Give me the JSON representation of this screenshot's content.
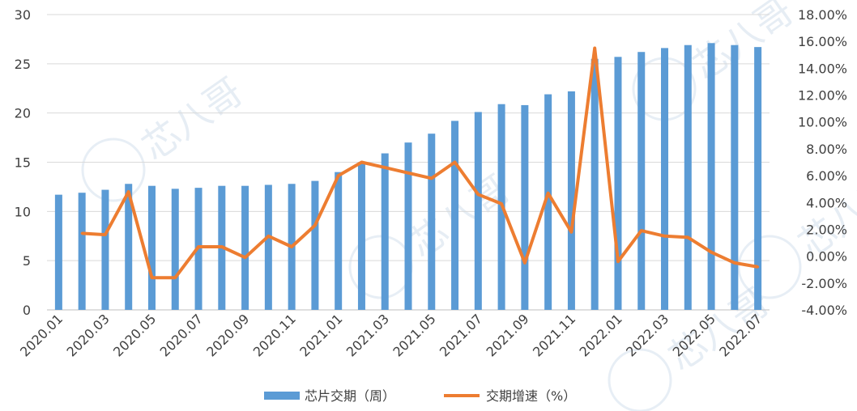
{
  "chart_data": {
    "type": "bar+line",
    "categories": [
      "2020.01",
      "2020.02",
      "2020.03",
      "2020.04",
      "2020.05",
      "2020.06",
      "2020.07",
      "2020.08",
      "2020.09",
      "2020.10",
      "2020.11",
      "2020.12",
      "2021.01",
      "2021.02",
      "2021.03",
      "2021.04",
      "2021.05",
      "2021.06",
      "2021.07",
      "2021.08",
      "2021.09",
      "2021.10",
      "2021.11",
      "2021.12",
      "2022.01",
      "2022.02",
      "2022.03",
      "2022.04",
      "2022.05",
      "2022.06",
      "2022.07"
    ],
    "x_tick_labels": [
      "2020.01",
      "2020.03",
      "2020.05",
      "2020.07",
      "2020.09",
      "2020.11",
      "2021.01",
      "2021.03",
      "2021.05",
      "2021.07",
      "2021.09",
      "2021.11",
      "2022.01",
      "2022.03",
      "2022.05",
      "2022.07"
    ],
    "series": [
      {
        "name": "芯片交期（周）",
        "type": "bar",
        "axis": "left",
        "color": "#5b9bd5",
        "values": [
          11.7,
          11.9,
          12.2,
          12.8,
          12.6,
          12.3,
          12.4,
          12.6,
          12.6,
          12.7,
          12.8,
          13.1,
          14.0,
          15.0,
          15.9,
          17.0,
          17.9,
          19.2,
          20.1,
          20.9,
          20.8,
          21.9,
          22.2,
          25.5,
          25.7,
          26.2,
          26.6,
          26.9,
          27.1,
          26.9,
          26.7
        ]
      },
      {
        "name": "交期增速（%）",
        "type": "line",
        "axis": "right",
        "color": "#ed7d31",
        "values": [
          null,
          1.7,
          1.6,
          4.8,
          -1.6,
          -1.6,
          0.7,
          0.7,
          -0.1,
          1.5,
          0.7,
          2.3,
          6.0,
          7.0,
          6.6,
          6.2,
          5.8,
          7.0,
          4.6,
          3.9,
          -0.5,
          4.7,
          1.8,
          15.5,
          -0.4,
          1.9,
          1.5,
          1.4,
          0.3,
          -0.5,
          -0.8
        ]
      }
    ],
    "left_axis": {
      "min": 0,
      "max": 30,
      "ticks": [
        "0",
        "5",
        "10",
        "15",
        "20",
        "25",
        "30"
      ]
    },
    "right_axis": {
      "min": -4,
      "max": 18,
      "ticks": [
        "-4.00%",
        "-2.00%",
        "0.00%",
        "2.00%",
        "4.00%",
        "6.00%",
        "8.00%",
        "10.00%",
        "12.00%",
        "14.00%",
        "16.00%",
        "18.00%"
      ]
    },
    "grid": true,
    "legend_position": "bottom"
  },
  "watermark": {
    "text": "芯八哥",
    "color": "#b9cde2"
  }
}
